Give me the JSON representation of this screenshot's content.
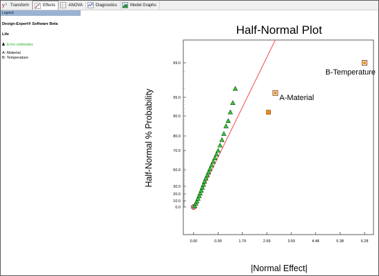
{
  "toolbar": {
    "tabs": [
      {
        "label": "Transform",
        "icon": "transform-icon",
        "active": false
      },
      {
        "label": "Effects",
        "icon": "effects-icon",
        "active": true
      },
      {
        "label": "ANOVA",
        "icon": "anova-icon",
        "active": false
      },
      {
        "label": "Diagnostics",
        "icon": "diagnostics-icon",
        "active": false
      },
      {
        "label": "Model Graphs",
        "icon": "model-graphs-icon",
        "active": false
      }
    ]
  },
  "legend": {
    "header": "Legend",
    "software": "Design-Expert® Software Beta",
    "response": "Life",
    "error_label": "Error estimates",
    "factors": [
      "A: Material",
      "B: Temperature"
    ]
  },
  "colors": {
    "accent_line": "#f26262",
    "error_points": "#33cc33",
    "effect_points": "#ee8a1a"
  },
  "chart_data": {
    "type": "scatter",
    "title": "Half-Normal Plot",
    "xlabel": "|Normal Effect|",
    "ylabel": "Half-Normal % Probability",
    "x_ticks": [
      "0.00",
      "0.90",
      "1.79",
      "2.69",
      "3.59",
      "4.48",
      "5.38",
      "6.28"
    ],
    "y_ticks": [
      "0.0",
      "10.0",
      "20.0",
      "30.0",
      "50.0",
      "70.0",
      "80.0",
      "90.0",
      "95.0",
      "99.0"
    ],
    "y_scale": "half-normal probability",
    "grid": false,
    "series": [
      {
        "name": "Error estimates",
        "marker": "triangle",
        "x": [
          0.04,
          0.08,
          0.12,
          0.16,
          0.2,
          0.24,
          0.28,
          0.32,
          0.36,
          0.4,
          0.45,
          0.5,
          0.55,
          0.6,
          0.66,
          0.72,
          0.78,
          0.84,
          0.9,
          0.97,
          1.04,
          1.11,
          1.19,
          1.27,
          1.35,
          1.44,
          1.53
        ],
        "y": [
          1.9,
          5.7,
          9.4,
          13.2,
          17.0,
          20.7,
          24.5,
          28.3,
          32.0,
          35.8,
          39.6,
          43.4,
          47.1,
          50.9,
          54.7,
          58.4,
          62.2,
          66.0,
          69.8,
          73.5,
          77.3,
          81.1,
          84.9,
          87.5,
          91.0,
          93.5,
          96.0
        ]
      },
      {
        "name": "Effects",
        "marker": "square",
        "labels": [
          "",
          "A-Material",
          "B-Temperature"
        ],
        "x": [
          2.75,
          3.0,
          6.28
        ],
        "y": [
          91.0,
          95.5,
          99.0
        ]
      }
    ],
    "reference_line": {
      "x": [
        0.0,
        3.0
      ],
      "y": [
        0.0,
        99.9
      ]
    },
    "origin_marker": {
      "x": 0.0,
      "y": 0.0
    }
  }
}
